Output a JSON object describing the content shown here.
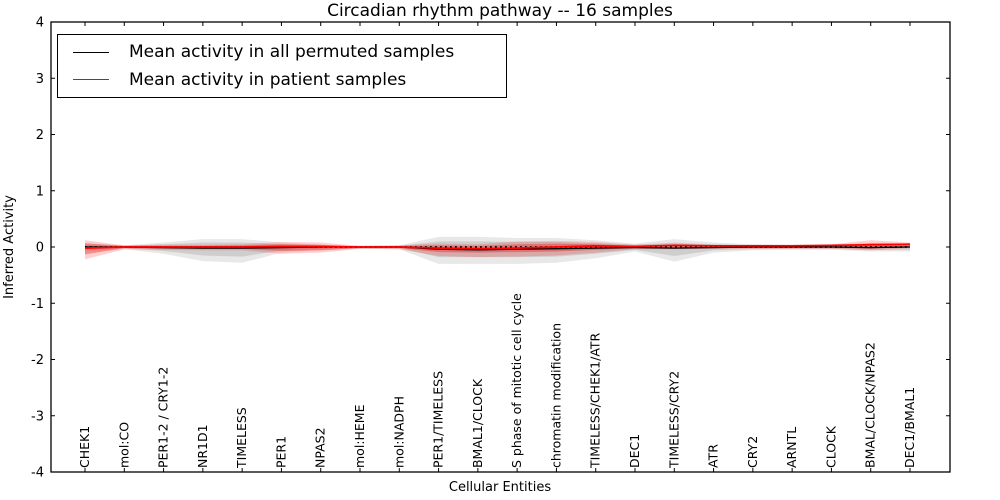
{
  "figure": {
    "background": "#ffffff"
  },
  "chart_data": {
    "type": "line",
    "title": "Circadian rhythm pathway -- 16 samples",
    "xlabel": "Cellular Entities",
    "ylabel": "Inferred Activity",
    "ylim": [
      -4,
      4
    ],
    "yticks": [
      -4,
      -3,
      -2,
      -1,
      0,
      1,
      2,
      3,
      4
    ],
    "grid": false,
    "legend_position": "upper left",
    "zero_reference_line": true,
    "categories": [
      "CHEK1",
      "mol:CO",
      "PER1-2 / CRY1-2",
      "NR1D1",
      "TIMELESS",
      "PER1",
      "NPAS2",
      "mol:HEME",
      "mol:NADPH",
      "PER1/TIMELESS",
      "BMAL1/CLOCK",
      "S phase of mitotic cell cycle",
      "chromatin modification",
      "TIMELESS/CHEK1/ATR",
      "DEC1",
      "TIMELESS/CRY2",
      "ATR",
      "CRY2",
      "ARNTL",
      "CLOCK",
      "BMAL/CLOCK/NPAS2",
      "DEC1/BMAL1"
    ],
    "series": [
      {
        "name": "Mean activity in all permuted samples",
        "color": "#000000",
        "values": [
          0.0,
          0.0,
          -0.01,
          -0.02,
          -0.02,
          -0.01,
          0.0,
          0.0,
          0.0,
          -0.04,
          -0.05,
          -0.04,
          -0.03,
          -0.02,
          -0.01,
          -0.02,
          -0.01,
          0.0,
          0.0,
          0.0,
          -0.01,
          0.0
        ]
      },
      {
        "name": "Mean activity in patient samples",
        "color": "#ff0000",
        "values": [
          -0.02,
          0.0,
          0.0,
          0.0,
          0.0,
          0.01,
          0.01,
          0.0,
          0.0,
          -0.02,
          -0.03,
          -0.02,
          0.0,
          0.02,
          0.01,
          0.03,
          0.02,
          0.02,
          0.02,
          0.03,
          0.04,
          0.05
        ]
      }
    ],
    "bands": [
      {
        "name": "permuted-range-outer",
        "color": "rgba(130,130,130,0.18)",
        "upper": [
          0.05,
          0.03,
          0.08,
          0.14,
          0.14,
          0.08,
          0.04,
          0.02,
          0.03,
          0.18,
          0.18,
          0.16,
          0.16,
          0.12,
          0.06,
          0.14,
          0.08,
          0.05,
          0.04,
          0.04,
          0.05,
          0.06
        ],
        "lower": [
          -0.07,
          -0.04,
          -0.12,
          -0.25,
          -0.28,
          -0.1,
          -0.05,
          -0.03,
          -0.04,
          -0.3,
          -0.3,
          -0.3,
          -0.28,
          -0.2,
          -0.08,
          -0.26,
          -0.1,
          -0.06,
          -0.05,
          -0.05,
          -0.08,
          -0.08
        ]
      },
      {
        "name": "permuted-range-inner",
        "color": "rgba(130,130,130,0.26)",
        "upper": [
          0.03,
          0.02,
          0.05,
          0.08,
          0.08,
          0.05,
          0.02,
          0.01,
          0.02,
          0.1,
          0.1,
          0.09,
          0.09,
          0.07,
          0.04,
          0.08,
          0.05,
          0.03,
          0.02,
          0.02,
          0.03,
          0.04
        ],
        "lower": [
          -0.04,
          -0.02,
          -0.07,
          -0.15,
          -0.17,
          -0.06,
          -0.03,
          -0.02,
          -0.02,
          -0.18,
          -0.18,
          -0.18,
          -0.17,
          -0.12,
          -0.05,
          -0.16,
          -0.06,
          -0.04,
          -0.03,
          -0.03,
          -0.05,
          -0.05
        ]
      },
      {
        "name": "patient-range-outer",
        "color": "rgba(255,40,40,0.22)",
        "upper": [
          0.12,
          0.03,
          0.04,
          0.04,
          0.05,
          0.09,
          0.08,
          0.02,
          0.03,
          0.06,
          0.05,
          0.1,
          0.11,
          0.09,
          0.04,
          0.06,
          0.04,
          0.04,
          0.04,
          0.05,
          0.12,
          0.08
        ],
        "lower": [
          -0.22,
          -0.04,
          -0.05,
          -0.06,
          -0.06,
          -0.12,
          -0.1,
          -0.03,
          -0.04,
          -0.16,
          -0.18,
          -0.17,
          -0.15,
          -0.1,
          -0.04,
          -0.04,
          -0.03,
          -0.03,
          -0.03,
          -0.03,
          -0.06,
          -0.02
        ]
      },
      {
        "name": "patient-range-inner",
        "color": "rgba(230,30,30,0.38)",
        "upper": [
          0.07,
          0.02,
          0.02,
          0.02,
          0.03,
          0.05,
          0.04,
          0.01,
          0.02,
          0.03,
          0.02,
          0.05,
          0.06,
          0.05,
          0.02,
          0.04,
          0.03,
          0.03,
          0.03,
          0.03,
          0.07,
          0.06
        ],
        "lower": [
          -0.13,
          -0.02,
          -0.03,
          -0.03,
          -0.03,
          -0.07,
          -0.06,
          -0.02,
          -0.02,
          -0.09,
          -0.1,
          -0.09,
          -0.08,
          -0.05,
          -0.02,
          -0.02,
          -0.01,
          -0.01,
          -0.01,
          -0.01,
          -0.03,
          0.0
        ]
      }
    ]
  }
}
